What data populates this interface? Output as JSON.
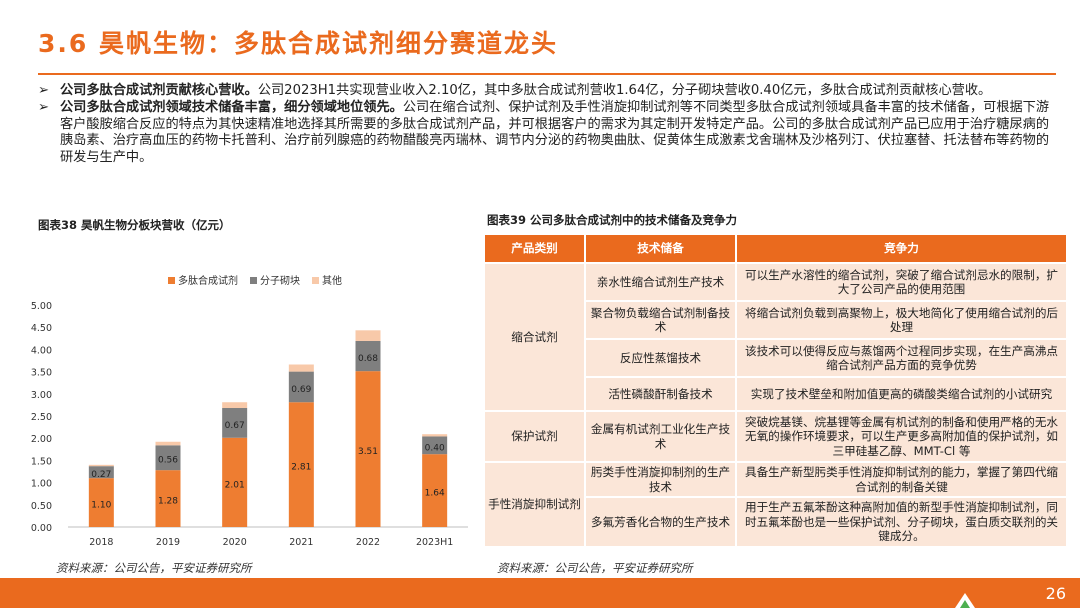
{
  "header": {
    "title": "3.6 昊帆生物：多肽合成试剂细分赛道龙头"
  },
  "bullets": [
    {
      "bold": "公司多肽合成试剂贡献核心营收。",
      "text": "公司2023H1共实现营业收入2.10亿，其中多肽合成试剂营收1.64亿，分子砌块营收0.40亿元，多肽合成试剂贡献核心营收。"
    },
    {
      "bold": "公司多肽合成试剂领域技术储备丰富，细分领域地位领先。",
      "text": "公司在缩合试剂、保护试剂及手性消旋抑制试剂等不同类型多肽合成试剂领域具备丰富的技术储备，可根据下游客户酸胺缩合反应的特点为其快速精准地选择其所需要的多肽合成试剂产品，并可根据客户的需求为其定制开发特定产品。公司的多肽合成试剂产品已应用于治疗糖尿病的胰岛素、治疗高血压的药物卡托普利、治疗前列腺癌的药物醋酸亮丙瑞林、调节内分泌的药物奥曲肽、促黄体生成激素戈舍瑞林及沙格列汀、伏拉塞替、托法替布等药物的研发与生产中。"
    }
  ],
  "left": {
    "caption": "图表38 昊帆生物分板块营收（亿元）",
    "source": "资料来源：公司公告，平安证券研究所"
  },
  "right": {
    "caption": "图表39 公司多肽合成试剂中的技术储备及竞争力",
    "source": "资料来源：公司公告，平安证券研究所",
    "headers": [
      "产品类别",
      "技术储备",
      "竞争力"
    ],
    "groups": [
      {
        "category": "缩合试剂",
        "rows": [
          {
            "tech": "亲水性缩合试剂生产技术",
            "advantage": "可以生产水溶性的缩合试剂，突破了缩合试剂忌水的限制，扩大了公司产品的使用范围"
          },
          {
            "tech": "聚合物负载缩合试剂制备技术",
            "advantage": "将缩合试剂负载到高聚物上，极大地简化了使用缩合试剂的后处理"
          },
          {
            "tech": "反应性蒸馏技术",
            "advantage": "该技术可以使得反应与蒸馏两个过程同步实现，在生产高沸点缩合试剂产品方面的竞争优势"
          },
          {
            "tech": "活性磷酸酐制备技术",
            "advantage": "实现了技术壁垒和附加值更高的磷酸类缩合试剂的小试研究"
          }
        ]
      },
      {
        "category": "保护试剂",
        "rows": [
          {
            "tech": "金属有机试剂工业化生产技术",
            "advantage": "突破烷基镁、烷基锂等金属有机试剂的制备和使用严格的无水无氧的操作环境要求，可以生产更多高附加值的保护试剂，如三甲硅基乙醇、MMT-Cl 等"
          }
        ]
      },
      {
        "category": "手性消旋抑制试剂",
        "rows": [
          {
            "tech": "肟类手性消旋抑制剂的生产技术",
            "advantage": "具备生产新型肟类手性消旋抑制试剂的能力，掌握了第四代缩合试剂的制备关键"
          },
          {
            "tech": "多氟芳香化合物的生产技术",
            "advantage": "用于生产五氟苯酚这种高附加值的新型手性消旋抑制试剂，同时五氟苯酚也是一些保护试剂、分子砌块，蛋白质交联剂的关键成分。"
          }
        ]
      }
    ]
  },
  "footer": {
    "page_number": "26"
  },
  "colors": {
    "accent": "#ea6a1e",
    "series_peptide": "#ee7d31",
    "series_block": "#7f7f7f",
    "series_other": "#f8c9a9",
    "table_fill": "#fbe6d8"
  },
  "chart_data": {
    "type": "bar",
    "stacked": true,
    "categories": [
      "2018",
      "2019",
      "2020",
      "2021",
      "2022",
      "2023H1"
    ],
    "series": [
      {
        "name": "多肽合成试剂",
        "values": [
          1.1,
          1.28,
          2.01,
          2.81,
          3.51,
          1.64
        ],
        "labels": [
          "1.10",
          "1.28",
          "2.01",
          "2.81",
          "3.51",
          "1.64"
        ]
      },
      {
        "name": "分子砌块",
        "values": [
          0.27,
          0.56,
          0.67,
          0.69,
          0.68,
          0.4
        ],
        "labels": [
          "0.27",
          "0.56",
          "0.67",
          "0.69",
          "0.68",
          "0.40"
        ]
      },
      {
        "name": "其他",
        "values": [
          0.03,
          0.08,
          0.13,
          0.16,
          0.24,
          0.05
        ]
      }
    ],
    "ylim": [
      0,
      5
    ],
    "yticks": [
      "0.00",
      "0.50",
      "1.00",
      "1.50",
      "2.00",
      "2.50",
      "3.00",
      "3.50",
      "4.00",
      "4.50",
      "5.00"
    ],
    "legend_position": "top",
    "grid": false
  }
}
